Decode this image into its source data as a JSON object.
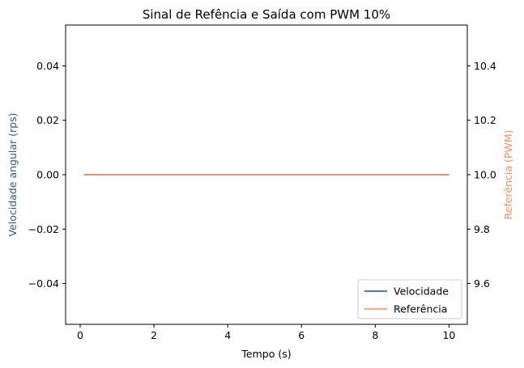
{
  "chart_data": {
    "type": "line",
    "title": "Sinal de Refência e Saída com PWM 10%",
    "xlabel": "Tempo (s)",
    "ylabel_left": "Velocidade angular (rps)",
    "ylabel_right": "Referência (PWM)",
    "xlim": [
      -0.3954,
      10.4954
    ],
    "ylim_left": [
      -0.055,
      0.055
    ],
    "ylim_right": [
      9.45,
      10.55
    ],
    "x_ticks": [
      0,
      2,
      4,
      6,
      8,
      10
    ],
    "x_tick_labels": [
      "0",
      "2",
      "4",
      "6",
      "8",
      "10"
    ],
    "y_left_ticks": [
      -0.04,
      -0.02,
      0.0,
      0.02,
      0.04
    ],
    "y_left_tick_labels": [
      "−0.04",
      "−0.02",
      "0.00",
      "0.02",
      "0.04"
    ],
    "y_right_ticks": [
      9.6,
      9.8,
      10.0,
      10.2,
      10.4
    ],
    "y_right_tick_labels": [
      "9.6",
      "9.8",
      "10.0",
      "10.2",
      "10.4"
    ],
    "grid": false,
    "legend_position": "lower-right",
    "series": [
      {
        "name": "Velocidade",
        "axis": "left",
        "color": "#1f4e89",
        "x": [
          0.1,
          10.0
        ],
        "y": [
          0.0,
          0.0
        ]
      },
      {
        "name": "Referência",
        "axis": "right",
        "color": "#ff8c5a",
        "x": [
          0.1,
          10.0
        ],
        "y": [
          10.0,
          10.0
        ]
      }
    ],
    "colors": {
      "left_axis_label": "#2b5d8a",
      "right_axis_label": "#ff8c5a"
    }
  }
}
